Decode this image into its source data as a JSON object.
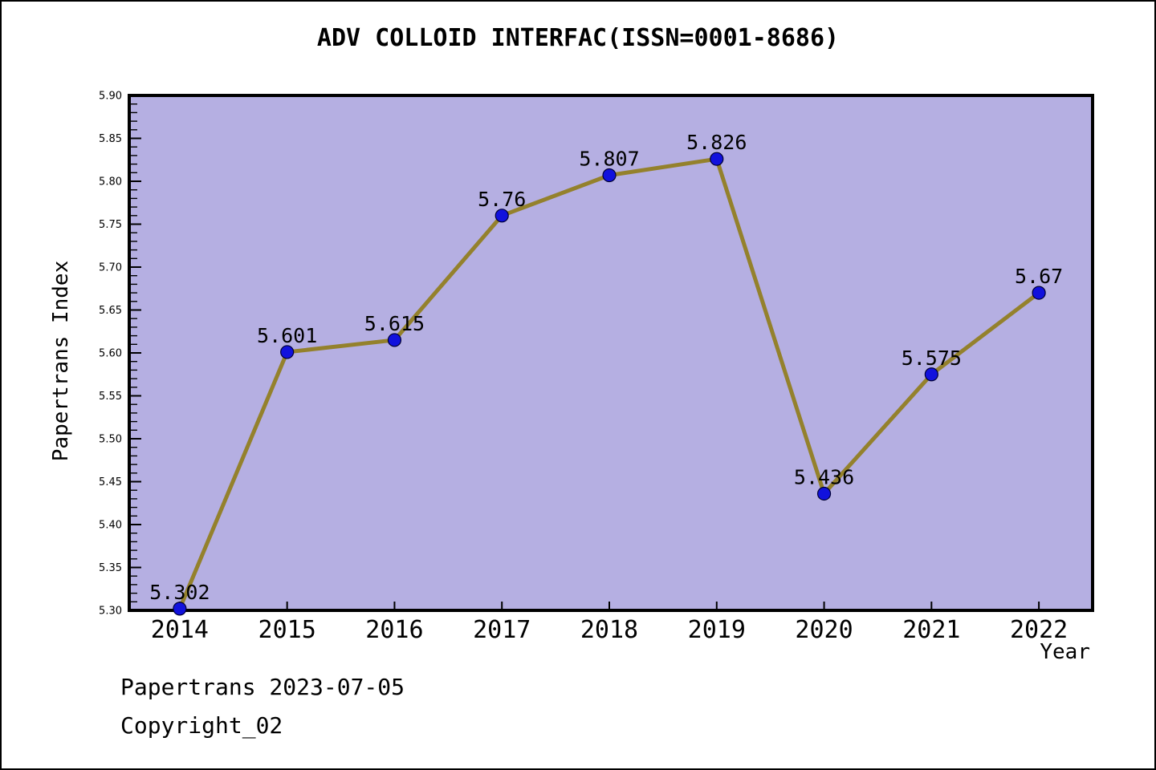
{
  "title": "ADV COLLOID INTERFAC(ISSN=0001-8686)",
  "footer": {
    "line1": "Papertrans 2023-07-05",
    "line2": "Copyright_02"
  },
  "chart_data": {
    "type": "line",
    "title": "ADV COLLOID INTERFAC(ISSN=0001-8686)",
    "xlabel": "Year",
    "ylabel": "Papertrans Index",
    "x": [
      2014,
      2015,
      2016,
      2017,
      2018,
      2019,
      2020,
      2021,
      2022
    ],
    "values": [
      5.302,
      5.601,
      5.615,
      5.76,
      5.807,
      5.826,
      5.436,
      5.575,
      5.67
    ],
    "point_labels": [
      "5.302",
      "5.601",
      "5.615",
      "5.76",
      "5.807",
      "5.826",
      "5.436",
      "5.575",
      "5.67"
    ],
    "xtick_labels": [
      "2014",
      "2015",
      "2016",
      "2017",
      "2018",
      "2019",
      "2020",
      "2021",
      "2022"
    ],
    "ytick_labels": [
      "5.30",
      "5.35",
      "5.40",
      "5.45",
      "5.50",
      "5.55",
      "5.60",
      "5.65",
      "5.70",
      "5.75",
      "5.80",
      "5.85",
      "5.90"
    ],
    "xlim": [
      2013.53,
      2022.5
    ],
    "ylim": [
      5.3,
      5.9
    ],
    "ytick_step": 0.05,
    "ytick_minor_step": 0.01,
    "grid": false,
    "legend_position": "none",
    "colors": {
      "page_bg": "#ffffff",
      "plot_bg": "#b5afe2",
      "line": "#94812c",
      "marker_fill": "#1111dd",
      "marker_edge": "#000033",
      "spine": "#000000",
      "text": "#000000"
    }
  }
}
